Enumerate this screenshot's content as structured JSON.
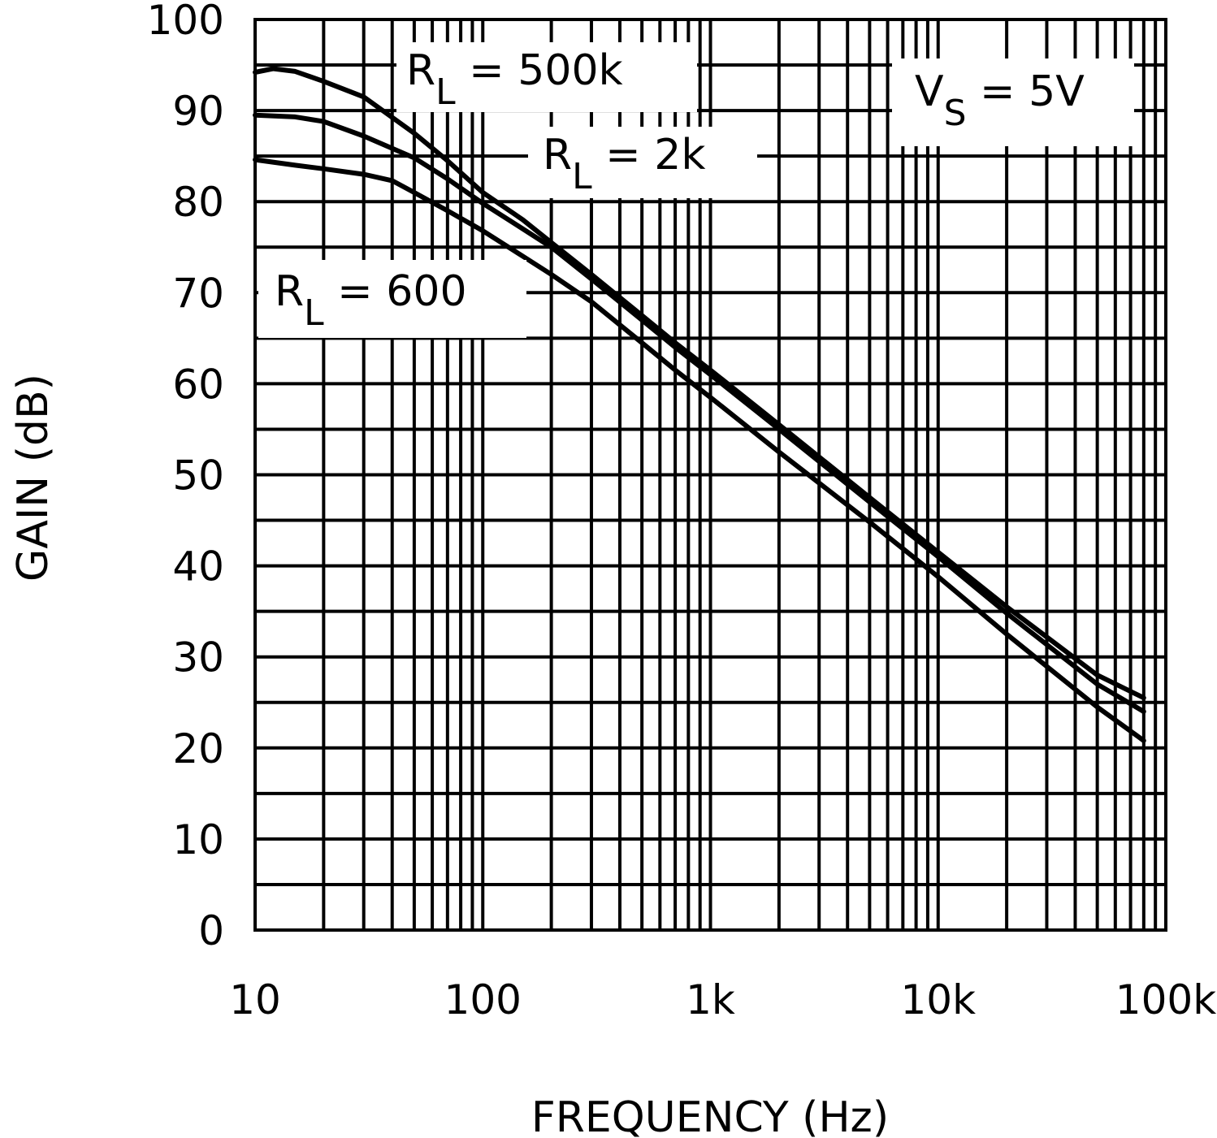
{
  "chart_data": {
    "type": "line",
    "title": "",
    "xlabel": "FREQUENCY (Hz)",
    "ylabel": "GAIN (dB)",
    "x_scale": "log",
    "xlim": [
      10,
      100000
    ],
    "ylim": [
      0,
      100
    ],
    "grid": true,
    "x_tick_labels": [
      "10",
      "100",
      "1k",
      "10k",
      "100k"
    ],
    "y_tick_labels": [
      "0",
      "10",
      "20",
      "30",
      "40",
      "50",
      "60",
      "70",
      "80",
      "90",
      "100"
    ],
    "annotations": [
      {
        "main": "R",
        "sub": "L",
        "rest": " = 500k"
      },
      {
        "main": "R",
        "sub": "L",
        "rest": " = 2k"
      },
      {
        "main": "R",
        "sub": "L",
        "rest": " = 600"
      },
      {
        "main": "V",
        "sub": "S",
        "rest": " = 5V"
      }
    ],
    "series": [
      {
        "name": "RL = 500k",
        "x": [
          10,
          12,
          15,
          20,
          30,
          50,
          70,
          100,
          150,
          200,
          300,
          500,
          700,
          1000,
          2000,
          5000,
          10000,
          20000,
          50000,
          80000
        ],
        "y": [
          94.2,
          94.6,
          94.3,
          93.2,
          91.5,
          87.5,
          84.5,
          81,
          78,
          75.5,
          72,
          67.5,
          64.5,
          61.5,
          55.5,
          47.5,
          41.5,
          35.5,
          28,
          25.5
        ]
      },
      {
        "name": "RL = 2k",
        "x": [
          10,
          15,
          20,
          30,
          50,
          70,
          100,
          150,
          200,
          300,
          500,
          700,
          1000,
          2000,
          5000,
          10000,
          20000,
          50000,
          80000
        ],
        "y": [
          89.5,
          89.3,
          88.8,
          87.2,
          84.8,
          82.5,
          79.8,
          77,
          75,
          71.5,
          67,
          64,
          61,
          55,
          47,
          41,
          34.8,
          27,
          24
        ]
      },
      {
        "name": "RL = 600",
        "x": [
          10,
          15,
          20,
          30,
          40,
          50,
          70,
          100,
          150,
          200,
          300,
          500,
          700,
          1000,
          2000,
          5000,
          10000,
          20000,
          50000,
          80000
        ],
        "y": [
          84.6,
          84,
          83.6,
          83,
          82.3,
          81,
          79,
          76.8,
          74,
          72,
          69,
          64.5,
          61.5,
          58.5,
          52.5,
          44.8,
          38.8,
          32.5,
          24.5,
          20.8
        ]
      }
    ]
  }
}
